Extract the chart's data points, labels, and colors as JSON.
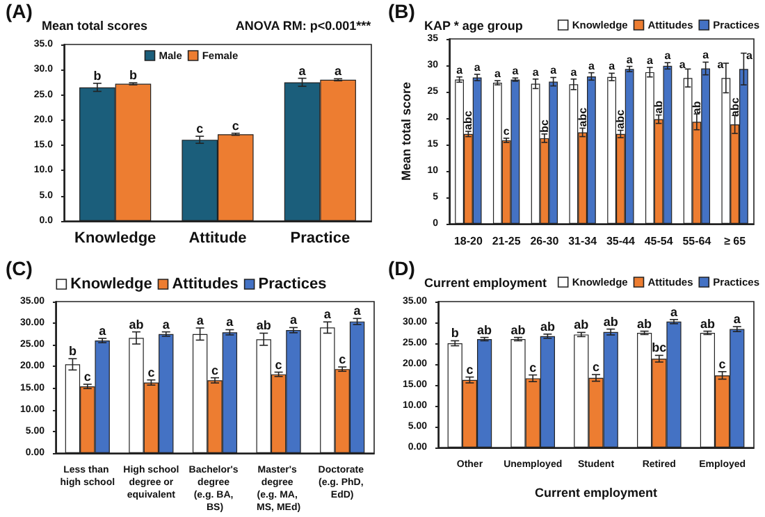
{
  "chart_data": [
    {
      "type": "bar",
      "title": "Mean total scores",
      "subtitle": "ANOVA RM: p<0.001***",
      "annotations": [
        "(A)"
      ],
      "categories": [
        "Knowledge",
        "Attitude",
        "Practice"
      ],
      "legend": "top",
      "grid": false,
      "ylim": [
        0,
        35
      ],
      "yticks": [
        {
          "value": 0,
          "label": "0.0"
        },
        {
          "value": 5,
          "label": "5.0"
        },
        {
          "value": 10,
          "label": "10.0"
        },
        {
          "value": 15,
          "label": "15.0"
        },
        {
          "value": 20,
          "label": "20.0"
        },
        {
          "value": 25,
          "label": "25.0"
        },
        {
          "value": 30,
          "label": "30.0"
        },
        {
          "value": 35,
          "label": "35.0"
        }
      ],
      "series": [
        {
          "name": "Male",
          "color": "#1b5e7b",
          "values": [
            26.5,
            16.1,
            27.5
          ],
          "errors": [
            0.8,
            0.7,
            0.8
          ],
          "value_labels": [
            "b",
            "c",
            "a"
          ]
        },
        {
          "name": "Female",
          "color": "#ed7d31",
          "values": [
            27.2,
            17.2,
            28.0
          ],
          "errors": [
            0.2,
            0.2,
            0.2
          ],
          "value_labels": [
            "b",
            "c",
            "a"
          ]
        }
      ]
    },
    {
      "type": "bar",
      "title": "KAP * age group",
      "ylabel": "Mean total score",
      "annotations": [
        "(B)"
      ],
      "categories": [
        "18-20",
        "21-25",
        "26-30",
        "31-34",
        "35-44",
        "45-54",
        "55-64",
        "≥ 65"
      ],
      "legend": "top right",
      "grid": false,
      "ylim": [
        0,
        35
      ],
      "yticks": [
        0,
        5,
        10,
        15,
        20,
        25,
        30,
        35
      ],
      "series": [
        {
          "name": "Knowledge",
          "color": "#ffffff",
          "values": [
            27.3,
            26.7,
            26.5,
            26.4,
            27.8,
            28.7,
            27.6,
            27.6
          ],
          "errors": [
            0.5,
            0.4,
            0.9,
            1.0,
            0.7,
            0.9,
            1.7,
            2.8
          ],
          "value_labels": [
            "a",
            "a",
            "a",
            "a",
            "a",
            "a",
            "a",
            "a"
          ]
        },
        {
          "name": "Attitudes",
          "color": "#ed7d31",
          "values": [
            17.0,
            15.8,
            16.2,
            17.3,
            17.0,
            19.8,
            19.3,
            18.8
          ],
          "errors": [
            0.5,
            0.4,
            0.8,
            0.8,
            0.7,
            0.8,
            1.5,
            1.7
          ],
          "value_labels": [
            "abc",
            "c",
            "bc",
            "abc",
            "abc",
            "ab",
            "ab",
            "abc"
          ]
        },
        {
          "name": "Practices",
          "color": "#4472c4",
          "values": [
            27.7,
            27.3,
            26.9,
            27.9,
            29.3,
            29.9,
            29.4,
            29.3
          ],
          "errors": [
            0.6,
            0.3,
            0.8,
            0.7,
            0.5,
            0.6,
            1.2,
            3.0
          ],
          "value_labels": [
            "a",
            "a",
            "a",
            "a",
            "a",
            "a",
            "a",
            "a"
          ]
        }
      ]
    },
    {
      "type": "bar",
      "annotations": [
        "(C)"
      ],
      "categories": [
        "Less than high school",
        "High school degree or equivalent",
        "Bachelor's degree (e.g. BA, BS)",
        "Master's degree (e.g. MA, MS, MEd)",
        "Doctorate (e.g. PhD, EdD)"
      ],
      "legend": "top",
      "grid": false,
      "ylim": [
        0,
        35
      ],
      "yticks": [
        {
          "value": 0,
          "label": "0.00"
        },
        {
          "value": 5,
          "label": "5.00"
        },
        {
          "value": 10,
          "label": "10.00"
        },
        {
          "value": 15,
          "label": "15.00"
        },
        {
          "value": 20,
          "label": "20.00"
        },
        {
          "value": 25,
          "label": "25.00"
        },
        {
          "value": 30,
          "label": "30.00"
        },
        {
          "value": 35,
          "label": "35.00"
        }
      ],
      "series": [
        {
          "name": "Knowledge",
          "color": "#ffffff",
          "values": [
            20.5,
            26.6,
            27.5,
            26.3,
            29.0
          ],
          "errors": [
            1.3,
            1.4,
            1.4,
            1.4,
            1.3
          ],
          "value_labels": [
            "b",
            "ab",
            "a",
            "ab",
            "a"
          ]
        },
        {
          "name": "Attitudes",
          "color": "#ed7d31",
          "values": [
            15.4,
            16.3,
            16.8,
            18.2,
            19.4
          ],
          "errors": [
            0.5,
            0.6,
            0.6,
            0.5,
            0.5
          ],
          "value_labels": [
            "c",
            "c",
            "c",
            "c",
            "c"
          ]
        },
        {
          "name": "Practices",
          "color": "#4472c4",
          "values": [
            26.0,
            27.5,
            27.9,
            28.4,
            30.4
          ],
          "errors": [
            0.5,
            0.5,
            0.6,
            0.6,
            0.7
          ],
          "value_labels": [
            "a",
            "a",
            "a",
            "a",
            "a"
          ]
        }
      ]
    },
    {
      "type": "bar",
      "title": "Current employment",
      "xlabel": "Current employment",
      "annotations": [
        "(D)"
      ],
      "categories": [
        "Other",
        "Unemployed",
        "Student",
        "Retired",
        "Employed"
      ],
      "legend": "top right",
      "grid": false,
      "ylim": [
        0,
        35
      ],
      "yticks": [
        {
          "value": 0,
          "label": "0.00"
        },
        {
          "value": 5,
          "label": "5.00"
        },
        {
          "value": 10,
          "label": "10.00"
        },
        {
          "value": 15,
          "label": "15.00"
        },
        {
          "value": 20,
          "label": "20.00"
        },
        {
          "value": 25,
          "label": "25.00"
        },
        {
          "value": 30,
          "label": "30.00"
        },
        {
          "value": 35,
          "label": "35.00"
        }
      ],
      "series": [
        {
          "name": "Knowledge",
          "color": "#ffffff",
          "values": [
            25.0,
            26.0,
            27.1,
            27.5,
            27.5
          ],
          "errors": [
            0.6,
            0.4,
            0.5,
            0.4,
            0.4
          ],
          "value_labels": [
            "b",
            "ab",
            "ab",
            "ab",
            "ab"
          ]
        },
        {
          "name": "Attitudes",
          "color": "#ed7d31",
          "values": [
            16.2,
            16.6,
            16.7,
            21.3,
            17.3
          ],
          "errors": [
            0.7,
            0.8,
            0.8,
            0.8,
            0.9
          ],
          "value_labels": [
            "c",
            "c",
            "c",
            "bc",
            "c"
          ]
        },
        {
          "name": "Practices",
          "color": "#4472c4",
          "values": [
            26.0,
            26.7,
            27.7,
            30.2,
            28.4
          ],
          "errors": [
            0.4,
            0.5,
            0.7,
            0.5,
            0.6
          ],
          "value_labels": [
            "ab",
            "ab",
            "ab",
            "a",
            "a"
          ]
        }
      ]
    }
  ]
}
